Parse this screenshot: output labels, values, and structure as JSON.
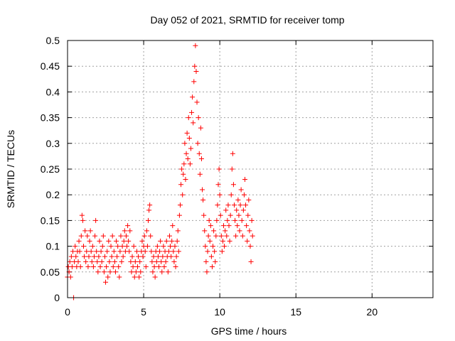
{
  "chart_data": {
    "type": "scatter",
    "title": "Day 052 of 2021, SRMTID for receiver tomp",
    "xlabel": "GPS time / hours",
    "ylabel": "SRMTID / TECUs",
    "xlim": [
      0,
      24
    ],
    "ylim": [
      0,
      0.5
    ],
    "xticks": [
      0,
      5,
      10,
      15,
      20
    ],
    "xtick_labels": [
      "0",
      "5",
      "10",
      "15",
      "20"
    ],
    "yticks": [
      0,
      0.05,
      0.1,
      0.15,
      0.2,
      0.25,
      0.3,
      0.35,
      0.4,
      0.45,
      0.5
    ],
    "ytick_labels": [
      "0",
      "0.05",
      "0.1",
      "0.15",
      "0.2",
      "0.25",
      "0.3",
      "0.35",
      "0.4",
      "0.45",
      "0.5"
    ],
    "grid": true,
    "marker": "plus",
    "color": "#ff0000",
    "series": [
      {
        "name": "SRMTID",
        "points": [
          [
            0.0,
            0.04
          ],
          [
            0.05,
            0.06
          ],
          [
            0.1,
            0.05
          ],
          [
            0.15,
            0.07
          ],
          [
            0.2,
            0.04
          ],
          [
            0.25,
            0.08
          ],
          [
            0.3,
            0.06
          ],
          [
            0.35,
            0.09
          ],
          [
            0.4,
            0.0
          ],
          [
            0.45,
            0.07
          ],
          [
            0.5,
            0.1
          ],
          [
            0.55,
            0.08
          ],
          [
            0.6,
            0.06
          ],
          [
            0.65,
            0.09
          ],
          [
            0.7,
            0.07
          ],
          [
            0.75,
            0.11
          ],
          [
            0.8,
            0.09
          ],
          [
            0.85,
            0.06
          ],
          [
            0.9,
            0.12
          ],
          [
            0.95,
            0.16
          ],
          [
            1.0,
            0.15
          ],
          [
            1.05,
            0.1
          ],
          [
            1.1,
            0.08
          ],
          [
            1.15,
            0.13
          ],
          [
            1.2,
            0.07
          ],
          [
            1.25,
            0.09
          ],
          [
            1.3,
            0.12
          ],
          [
            1.35,
            0.06
          ],
          [
            1.4,
            0.08
          ],
          [
            1.45,
            0.11
          ],
          [
            1.5,
            0.13
          ],
          [
            1.55,
            0.09
          ],
          [
            1.6,
            0.07
          ],
          [
            1.65,
            0.1
          ],
          [
            1.7,
            0.06
          ],
          [
            1.75,
            0.08
          ],
          [
            1.8,
            0.12
          ],
          [
            1.85,
            0.15
          ],
          [
            1.9,
            0.09
          ],
          [
            1.95,
            0.07
          ],
          [
            2.0,
            0.05
          ],
          [
            2.05,
            0.08
          ],
          [
            2.1,
            0.11
          ],
          [
            2.15,
            0.06
          ],
          [
            2.2,
            0.09
          ],
          [
            2.25,
            0.07
          ],
          [
            2.3,
            0.1
          ],
          [
            2.35,
            0.12
          ],
          [
            2.4,
            0.05
          ],
          [
            2.45,
            0.08
          ],
          [
            2.5,
            0.03
          ],
          [
            2.55,
            0.06
          ],
          [
            2.6,
            0.09
          ],
          [
            2.65,
            0.04
          ],
          [
            2.7,
            0.11
          ],
          [
            2.75,
            0.07
          ],
          [
            2.8,
            0.05
          ],
          [
            2.85,
            0.1
          ],
          [
            2.9,
            0.08
          ],
          [
            2.95,
            0.12
          ],
          [
            3.0,
            0.06
          ],
          [
            3.05,
            0.09
          ],
          [
            3.1,
            0.07
          ],
          [
            3.15,
            0.05
          ],
          [
            3.2,
            0.11
          ],
          [
            3.25,
            0.08
          ],
          [
            3.3,
            0.1
          ],
          [
            3.35,
            0.06
          ],
          [
            3.4,
            0.04
          ],
          [
            3.45,
            0.09
          ],
          [
            3.5,
            0.12
          ],
          [
            3.55,
            0.07
          ],
          [
            3.6,
            0.1
          ],
          [
            3.65,
            0.08
          ],
          [
            3.7,
            0.11
          ],
          [
            3.75,
            0.13
          ],
          [
            3.8,
            0.09
          ],
          [
            3.85,
            0.12
          ],
          [
            3.9,
            0.1
          ],
          [
            3.95,
            0.14
          ],
          [
            4.0,
            0.11
          ],
          [
            4.05,
            0.09
          ],
          [
            4.1,
            0.13
          ],
          [
            4.15,
            0.07
          ],
          [
            4.2,
            0.05
          ],
          [
            4.25,
            0.08
          ],
          [
            4.3,
            0.06
          ],
          [
            4.35,
            0.1
          ],
          [
            4.4,
            0.04
          ],
          [
            4.45,
            0.07
          ],
          [
            4.5,
            0.05
          ],
          [
            4.55,
            0.09
          ],
          [
            4.6,
            0.06
          ],
          [
            4.65,
            0.08
          ],
          [
            4.7,
            0.04
          ],
          [
            4.75,
            0.07
          ],
          [
            4.8,
            0.05
          ],
          [
            4.85,
            0.09
          ],
          [
            4.9,
            0.11
          ],
          [
            4.95,
            0.08
          ],
          [
            5.0,
            0.1
          ],
          [
            5.05,
            0.12
          ],
          [
            5.1,
            0.09
          ],
          [
            5.15,
            0.06
          ],
          [
            5.2,
            0.13
          ],
          [
            5.25,
            0.1
          ],
          [
            5.3,
            0.15
          ],
          [
            5.35,
            0.17
          ],
          [
            5.4,
            0.18
          ],
          [
            5.45,
            0.12
          ],
          [
            5.5,
            0.09
          ],
          [
            5.55,
            0.07
          ],
          [
            5.6,
            0.05
          ],
          [
            5.65,
            0.08
          ],
          [
            5.7,
            0.06
          ],
          [
            5.75,
            0.04
          ],
          [
            5.8,
            0.09
          ],
          [
            5.85,
            0.07
          ],
          [
            5.9,
            0.1
          ],
          [
            5.95,
            0.08
          ],
          [
            6.0,
            0.06
          ],
          [
            6.05,
            0.09
          ],
          [
            6.1,
            0.11
          ],
          [
            6.15,
            0.07
          ],
          [
            6.2,
            0.05
          ],
          [
            6.25,
            0.08
          ],
          [
            6.3,
            0.1
          ],
          [
            6.35,
            0.06
          ],
          [
            6.4,
            0.09
          ],
          [
            6.45,
            0.07
          ],
          [
            6.5,
            0.11
          ],
          [
            6.55,
            0.08
          ],
          [
            6.6,
            0.05
          ],
          [
            6.65,
            0.09
          ],
          [
            6.7,
            0.12
          ],
          [
            6.75,
            0.1
          ],
          [
            6.8,
            0.08
          ],
          [
            6.85,
            0.11
          ],
          [
            6.9,
            0.14
          ],
          [
            6.95,
            0.09
          ],
          [
            7.0,
            0.07
          ],
          [
            7.05,
            0.1
          ],
          [
            7.1,
            0.06
          ],
          [
            7.15,
            0.08
          ],
          [
            7.2,
            0.11
          ],
          [
            7.25,
            0.13
          ],
          [
            7.3,
            0.09
          ],
          [
            7.35,
            0.16
          ],
          [
            7.4,
            0.18
          ],
          [
            7.45,
            0.22
          ],
          [
            7.5,
            0.25
          ],
          [
            7.55,
            0.2
          ],
          [
            7.6,
            0.24
          ],
          [
            7.65,
            0.26
          ],
          [
            7.7,
            0.3
          ],
          [
            7.75,
            0.23
          ],
          [
            7.8,
            0.28
          ],
          [
            7.85,
            0.32
          ],
          [
            7.9,
            0.27
          ],
          [
            7.95,
            0.35
          ],
          [
            8.0,
            0.31
          ],
          [
            8.05,
            0.26
          ],
          [
            8.1,
            0.29
          ],
          [
            8.15,
            0.36
          ],
          [
            8.2,
            0.39
          ],
          [
            8.25,
            0.34
          ],
          [
            8.3,
            0.42
          ],
          [
            8.35,
            0.45
          ],
          [
            8.4,
            0.49
          ],
          [
            8.45,
            0.44
          ],
          [
            8.5,
            0.38
          ],
          [
            8.55,
            0.3
          ],
          [
            8.6,
            0.35
          ],
          [
            8.65,
            0.28
          ],
          [
            8.7,
            0.24
          ],
          [
            8.75,
            0.33
          ],
          [
            8.8,
            0.27
          ],
          [
            8.85,
            0.21
          ],
          [
            8.9,
            0.19
          ],
          [
            8.95,
            0.16
          ],
          [
            9.0,
            0.13
          ],
          [
            9.05,
            0.1
          ],
          [
            9.1,
            0.07
          ],
          [
            9.15,
            0.05
          ],
          [
            9.2,
            0.09
          ],
          [
            9.25,
            0.12
          ],
          [
            9.3,
            0.15
          ],
          [
            9.35,
            0.11
          ],
          [
            9.4,
            0.14
          ],
          [
            9.45,
            0.08
          ],
          [
            9.5,
            0.06
          ],
          [
            9.55,
            0.1
          ],
          [
            9.6,
            0.13
          ],
          [
            9.65,
            0.09
          ],
          [
            9.7,
            0.07
          ],
          [
            9.75,
            0.12
          ],
          [
            9.8,
            0.15
          ],
          [
            9.85,
            0.18
          ],
          [
            9.9,
            0.22
          ],
          [
            9.95,
            0.25
          ],
          [
            10.0,
            0.2
          ],
          [
            10.05,
            0.16
          ],
          [
            10.1,
            0.12
          ],
          [
            10.15,
            0.09
          ],
          [
            10.2,
            0.11
          ],
          [
            10.25,
            0.14
          ],
          [
            10.3,
            0.1
          ],
          [
            10.35,
            0.13
          ],
          [
            10.4,
            0.17
          ],
          [
            10.45,
            0.12
          ],
          [
            10.5,
            0.15
          ],
          [
            10.55,
            0.18
          ],
          [
            10.6,
            0.14
          ],
          [
            10.65,
            0.11
          ],
          [
            10.7,
            0.16
          ],
          [
            10.75,
            0.2
          ],
          [
            10.8,
            0.25
          ],
          [
            10.85,
            0.28
          ],
          [
            10.9,
            0.22
          ],
          [
            10.95,
            0.18
          ],
          [
            11.0,
            0.15
          ],
          [
            11.05,
            0.12
          ],
          [
            11.1,
            0.17
          ],
          [
            11.15,
            0.14
          ],
          [
            11.2,
            0.19
          ],
          [
            11.25,
            0.16
          ],
          [
            11.3,
            0.13
          ],
          [
            11.35,
            0.18
          ],
          [
            11.4,
            0.21
          ],
          [
            11.45,
            0.15
          ],
          [
            11.5,
            0.12
          ],
          [
            11.55,
            0.17
          ],
          [
            11.6,
            0.2
          ],
          [
            11.65,
            0.23
          ],
          [
            11.7,
            0.18
          ],
          [
            11.75,
            0.14
          ],
          [
            11.8,
            0.11
          ],
          [
            11.85,
            0.16
          ],
          [
            11.9,
            0.19
          ],
          [
            11.95,
            0.13
          ],
          [
            12.0,
            0.1
          ],
          [
            12.05,
            0.07
          ],
          [
            12.1,
            0.15
          ],
          [
            12.15,
            0.12
          ]
        ]
      }
    ]
  }
}
